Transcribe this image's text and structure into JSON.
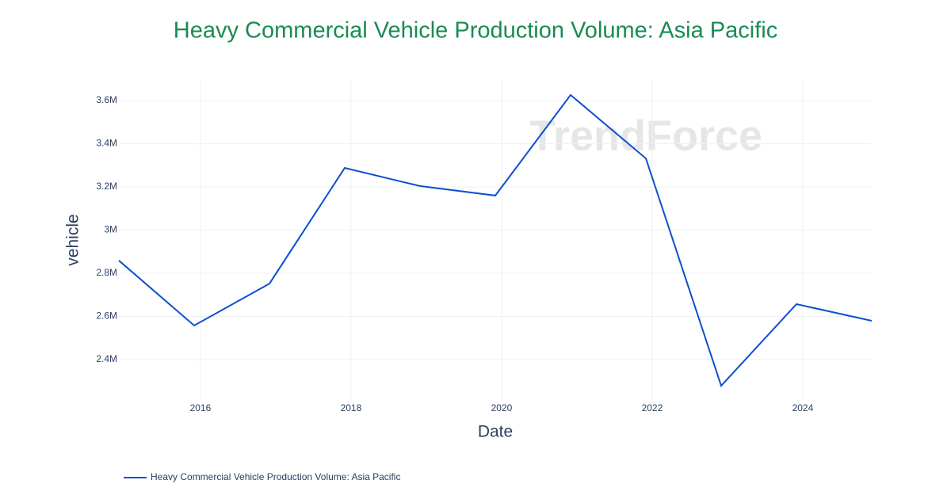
{
  "chart_data": {
    "type": "line",
    "title": "Heavy Commercial Vehicle Production Volume: Asia Pacific",
    "x_label": "Date",
    "y_label": "vehicle",
    "watermark": "TrendForce",
    "x": [
      "2014-12",
      "2015-12",
      "2016-12",
      "2017-12",
      "2018-12",
      "2019-12",
      "2020-12",
      "2021-12",
      "2022-12",
      "2023-12",
      "2024-12"
    ],
    "series": [
      {
        "name": "Heavy Commercial Vehicle Production Volume: Asia Pacific",
        "color": "#0b4fd1",
        "values": [
          2859000,
          2558000,
          2752000,
          3288000,
          3204000,
          3160000,
          3626000,
          3332000,
          2279000,
          2657000,
          2580000
        ]
      }
    ],
    "xlim": [
      "2014-12",
      "2024-12"
    ],
    "xticks": [
      2016,
      2018,
      2020,
      2022,
      2024
    ],
    "ylim": [
      2213000,
      3699000
    ],
    "yticks": [
      {
        "value": 2400000,
        "label": "2.4M"
      },
      {
        "value": 2600000,
        "label": "2.6M"
      },
      {
        "value": 2800000,
        "label": "2.8M"
      },
      {
        "value": 3000000,
        "label": "3M"
      },
      {
        "value": 3200000,
        "label": "3.2M"
      },
      {
        "value": 3400000,
        "label": "3.4M"
      },
      {
        "value": 3600000,
        "label": "3.6M"
      }
    ],
    "grid": true,
    "legend": "bottom-left"
  }
}
